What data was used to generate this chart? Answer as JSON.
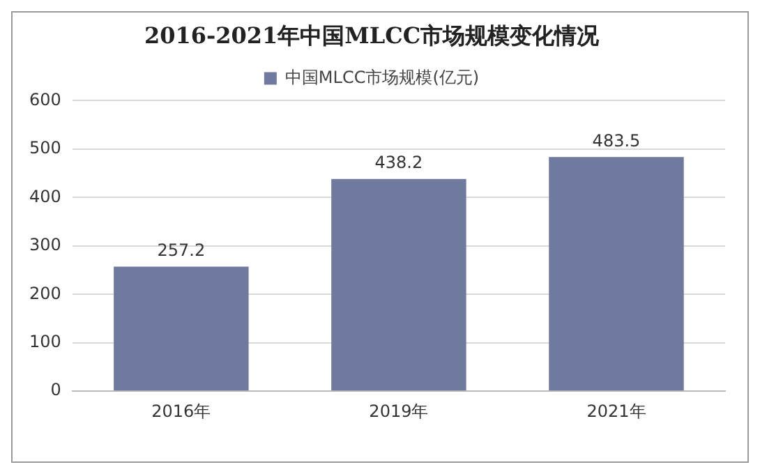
{
  "chart_data": {
    "type": "bar",
    "title": "2016-2021年中国MLCC市场规模变化情况",
    "categories": [
      "2016年",
      "2019年",
      "2021年"
    ],
    "series": [
      {
        "name": "中国MLCC市场规模(亿元)",
        "color": "#6f7a9e",
        "values": [
          257.2,
          438.2,
          483.5
        ]
      }
    ],
    "ylim": [
      0,
      600
    ],
    "yticks": [
      0,
      100,
      200,
      300,
      400,
      500,
      600
    ],
    "grid": "y",
    "legend": "top",
    "data_labels": true
  }
}
